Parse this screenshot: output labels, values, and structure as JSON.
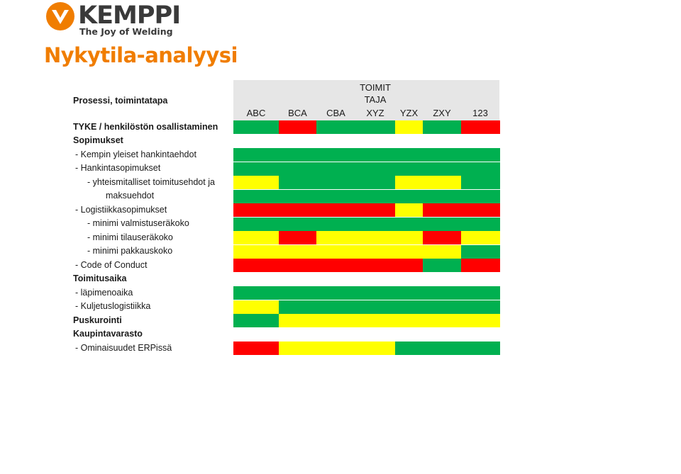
{
  "brand": {
    "name": "KEMPPI",
    "tagline": "The Joy of Welding",
    "color": "#f07d00"
  },
  "title": "Nykytila-analyysi",
  "table": {
    "group_header": [
      "TOIMIT",
      "TAJA"
    ],
    "label_header": "Prosessi, toimintatapa",
    "columns": [
      "ABC",
      "BCA",
      "CBA",
      "XYZ",
      "YZX",
      "ZXY",
      "123"
    ],
    "colors": {
      "G": "#00b050",
      "Y": "#ffff00",
      "R": "#ff0000",
      "W": "#ffffff"
    },
    "rows": [
      {
        "label": "TYKE / henkilöstön osallistaminen",
        "bold": true,
        "indent": 0,
        "status": [
          "G",
          "R",
          "G",
          "G",
          "Y",
          "G",
          "R"
        ]
      },
      {
        "label": "Sopimukset",
        "bold": true,
        "indent": 0,
        "status": [
          "W",
          "W",
          "W",
          "W",
          "W",
          "W",
          "W"
        ]
      },
      {
        "label": "- Kempin yleiset hankintaehdot",
        "bold": false,
        "indent": 1,
        "status": [
          "G",
          "G",
          "G",
          "G",
          "G",
          "G",
          "G"
        ]
      },
      {
        "label": "- Hankintasopimukset",
        "bold": false,
        "indent": 1,
        "status": [
          "G",
          "G",
          "G",
          "G",
          "G",
          "G",
          "G"
        ]
      },
      {
        "label": "- yhteismitalliset toimitusehdot ja",
        "bold": false,
        "indent": 2,
        "status": [
          "Y",
          "G",
          "G",
          "G",
          "Y",
          "Y",
          "G"
        ]
      },
      {
        "label": "maksuehdot",
        "bold": false,
        "indent": 3,
        "status": [
          "G",
          "G",
          "G",
          "G",
          "G",
          "G",
          "G"
        ]
      },
      {
        "label": "- Logistiikkasopimukset",
        "bold": false,
        "indent": 1,
        "status": [
          "R",
          "R",
          "R",
          "R",
          "Y",
          "R",
          "R"
        ]
      },
      {
        "label": "- minimi valmistuseräkoko",
        "bold": false,
        "indent": 2,
        "status": [
          "G",
          "G",
          "G",
          "G",
          "G",
          "G",
          "G"
        ]
      },
      {
        "label": "- minimi tilauseräkoko",
        "bold": false,
        "indent": 2,
        "status": [
          "Y",
          "R",
          "Y",
          "Y",
          "Y",
          "R",
          "Y"
        ]
      },
      {
        "label": "- minimi pakkauskoko",
        "bold": false,
        "indent": 2,
        "status": [
          "Y",
          "Y",
          "Y",
          "Y",
          "Y",
          "Y",
          "G"
        ]
      },
      {
        "label": "- Code of Conduct",
        "bold": false,
        "indent": 1,
        "status": [
          "R",
          "R",
          "R",
          "R",
          "R",
          "G",
          "R"
        ]
      },
      {
        "label": "Toimitusaika",
        "bold": true,
        "indent": 0,
        "status": [
          "W",
          "W",
          "W",
          "W",
          "W",
          "W",
          "W"
        ]
      },
      {
        "label": "- läpimenoaika",
        "bold": false,
        "indent": 1,
        "status": [
          "G",
          "G",
          "G",
          "G",
          "G",
          "G",
          "G"
        ]
      },
      {
        "label": "- Kuljetuslogistiikka",
        "bold": false,
        "indent": 1,
        "status": [
          "Y",
          "G",
          "G",
          "G",
          "G",
          "G",
          "G"
        ]
      },
      {
        "label": "Puskurointi",
        "bold": true,
        "indent": 0,
        "status": [
          "G",
          "Y",
          "Y",
          "Y",
          "Y",
          "Y",
          "Y"
        ]
      },
      {
        "label": "Kaupintavarasto",
        "bold": true,
        "indent": 0,
        "status": [
          "W",
          "W",
          "W",
          "W",
          "W",
          "W",
          "W"
        ]
      },
      {
        "label": "- Ominaisuudet ERPissä",
        "bold": false,
        "indent": 1,
        "status": [
          "R",
          "Y",
          "Y",
          "Y",
          "G",
          "G",
          "G"
        ]
      }
    ]
  }
}
